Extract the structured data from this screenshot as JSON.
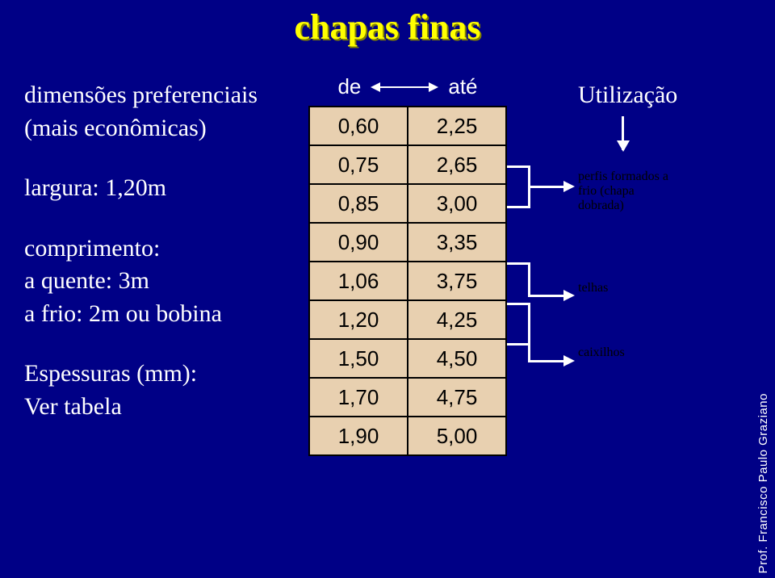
{
  "title": "chapas finas",
  "left": {
    "dim_l1": "dimensões preferenciais",
    "dim_l2": "(mais econômicas)",
    "larg": "largura: 1,20m",
    "comp_l1": "comprimento:",
    "comp_l2": "a quente: 3m",
    "comp_l3": "a frio: 2m ou bobina",
    "esp_l1": "Espessuras (mm):",
    "esp_l2": "Ver tabela"
  },
  "header": {
    "de": "de",
    "ate": "até"
  },
  "rows": [
    {
      "a": "0,60",
      "b": "2,25"
    },
    {
      "a": "0,75",
      "b": "2,65"
    },
    {
      "a": "0,85",
      "b": "3,00"
    },
    {
      "a": "0,90",
      "b": "3,35"
    },
    {
      "a": "1,06",
      "b": "3,75"
    },
    {
      "a": "1,20",
      "b": "4,25"
    },
    {
      "a": "1,50",
      "b": "4,50"
    },
    {
      "a": "1,70",
      "b": "4,75"
    },
    {
      "a": "1,90",
      "b": "5,00"
    }
  ],
  "right": {
    "util": "Utilização",
    "perfis_l1": "perfis formados a",
    "perfis_l2": "frio (chapa",
    "perfis_l3": "dobrada)",
    "telhas": "telhas",
    "cax": "caixilhos"
  },
  "footer": "Prof. Francisco Paulo Graziano",
  "colors": {
    "bg": "#000086",
    "title": "#ffff00",
    "title_shadow": "#808000",
    "text": "#ffffff",
    "table_bg": "#e8d0b0",
    "table_border": "#000000"
  }
}
